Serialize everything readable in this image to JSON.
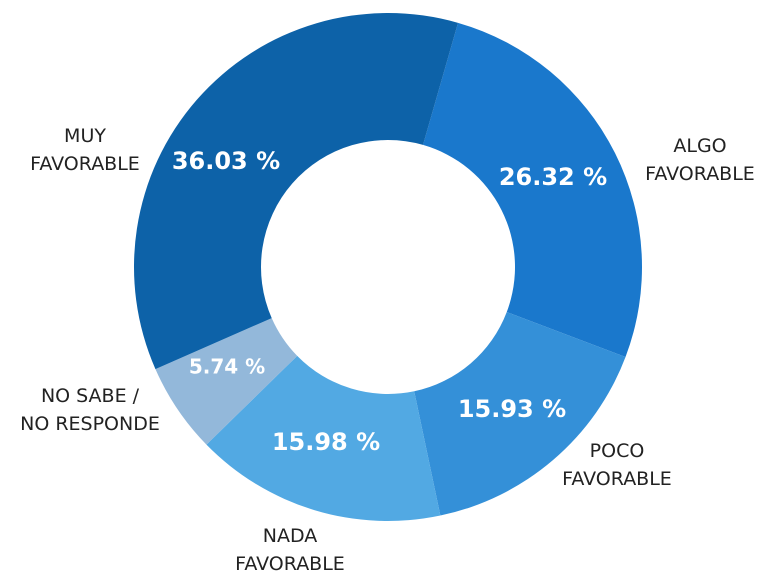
{
  "chart_data": {
    "type": "donut",
    "categories": [
      "ALGO\nFAVORABLE",
      "POCO\nFAVORABLE",
      "NADA\nFAVORABLE",
      "NO SABE /\nNO RESPONDE",
      "MUY\nFAVORABLE"
    ],
    "values": [
      26.32,
      15.93,
      15.98,
      5.74,
      36.03
    ],
    "value_labels": [
      "26.32 %",
      "15.93 %",
      "15.98 %",
      "5.74 %",
      "36.03 %"
    ],
    "colors": [
      "#1a78cc",
      "#3490d8",
      "#52a9e3",
      "#93b8da",
      "#0d62a8"
    ]
  }
}
